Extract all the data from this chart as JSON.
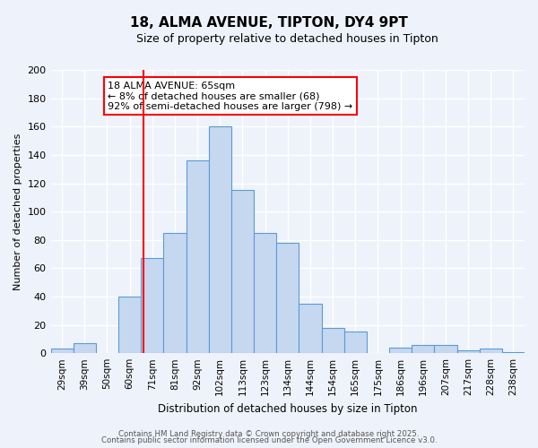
{
  "title": "18, ALMA AVENUE, TIPTON, DY4 9PT",
  "subtitle": "Size of property relative to detached houses in Tipton",
  "xlabel": "Distribution of detached houses by size in Tipton",
  "ylabel": "Number of detached properties",
  "tick_labels": [
    "29sqm",
    "39sqm",
    "50sqm",
    "60sqm",
    "71sqm",
    "81sqm",
    "92sqm",
    "102sqm",
    "113sqm",
    "123sqm",
    "134sqm",
    "144sqm",
    "154sqm",
    "165sqm",
    "175sqm",
    "186sqm",
    "196sqm",
    "207sqm",
    "217sqm",
    "228sqm",
    "238sqm"
  ],
  "bar_heights": [
    3,
    7,
    0,
    40,
    67,
    85,
    136,
    160,
    115,
    85,
    78,
    35,
    18,
    15,
    0,
    4,
    6,
    6,
    2,
    3,
    1
  ],
  "bar_color": "#c5d8f0",
  "bar_edge_color": "#5b9bd5",
  "bg_color": "#eef2fb",
  "grid_color": "#d8dff0",
  "red_line_x": 65,
  "annotation_box_text": "18 ALMA AVENUE: 65sqm\n← 8% of detached houses are smaller (68)\n92% of semi-detached houses are larger (798) →",
  "ylim": [
    0,
    200
  ],
  "yticks": [
    0,
    20,
    40,
    60,
    80,
    100,
    120,
    140,
    160,
    180,
    200
  ],
  "footer1": "Contains HM Land Registry data © Crown copyright and database right 2025.",
  "footer2": "Contains public sector information licensed under the Open Government Licence v3.0."
}
